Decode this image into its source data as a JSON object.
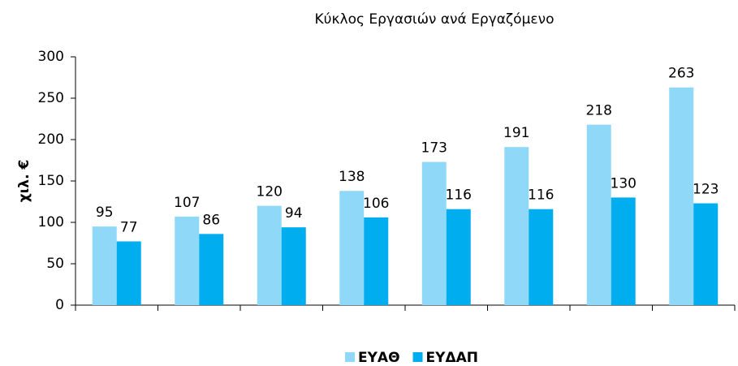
{
  "chart_data": {
    "type": "bar",
    "title": "Κύκλος Εργασιών ανά Εργαζόμενο",
    "y_label": "χιλ. €",
    "categories": [
      null,
      null,
      null,
      null,
      null,
      null,
      null,
      null
    ],
    "series": [
      {
        "name": "ΕΥΑΘ",
        "color": "#8fd8f8",
        "values": [
          95,
          107,
          120,
          138,
          173,
          191,
          218,
          263
        ]
      },
      {
        "name": "ΕΥΔΑΠ",
        "color": "#00adef",
        "values": [
          77,
          86,
          94,
          106,
          116,
          116,
          130,
          123
        ]
      }
    ],
    "ylim": [
      0,
      300
    ],
    "yticks": [
      0,
      50,
      100,
      150,
      200,
      250,
      300
    ],
    "legend": "bottom"
  }
}
